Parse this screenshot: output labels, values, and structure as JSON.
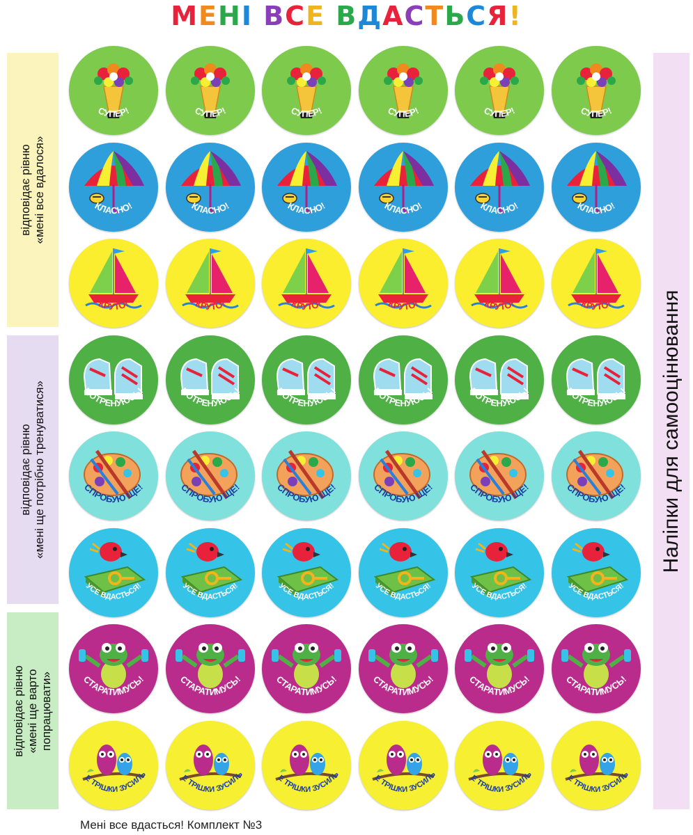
{
  "title": {
    "text": "МЕНІ ВСЕ ВДАСТЬСЯ!",
    "letter_colors": [
      "#e8223a",
      "#f08a1c",
      "#2aa84a",
      "#1e88d8",
      "#ffffff",
      "#8a3fb8",
      "#e8223a",
      "#f0b51c",
      "#ffffff",
      "#2aa84a",
      "#1e88d8",
      "#e8223a",
      "#8a3fb8",
      "#f08a1c",
      "#2aa84a",
      "#1e88d8",
      "#e8223a",
      "#f0b51c"
    ]
  },
  "side_labels": [
    {
      "line1": "відповідає рівню",
      "line2": "«мені все вдалося»",
      "line3": "",
      "color": "#fbf5bd"
    },
    {
      "line1": "відповідає рівню",
      "line2": "«мені ще потрібно тренуватися»",
      "line3": "",
      "color": "#e5dcf1"
    },
    {
      "line1": "відповідає рівню",
      "line2": "«мені ще варто",
      "line3": "попрацювати»",
      "color": "#c8ecc4"
    }
  ],
  "right_label": "Наліпки для самооцінювання",
  "sticker_rows": [
    {
      "label": "СУПЕР!",
      "icon": "bouquet-icon",
      "bg": "#7dca4c",
      "text_color": "#ffffff"
    },
    {
      "label": "КЛАСНО!",
      "icon": "umbrella-icon",
      "bg": "#2f9fdc",
      "text_color": "#ffffff"
    },
    {
      "label": "КРУТО!",
      "icon": "sailboat-icon",
      "bg": "#fbee2e",
      "text_color": "#e8223a"
    },
    {
      "label": "ПОТРЕНУЮСЬ!",
      "icon": "sneakers-icon",
      "bg": "#4fb046",
      "text_color": "#ffffff"
    },
    {
      "label": "СПРОБУЮ ЩЕ!",
      "icon": "palette-icon",
      "bg": "#7fe0dc",
      "text_color": "#1a3fa0"
    },
    {
      "label": "УСЕ ВДАСТЬСЯ!",
      "icon": "bird-book-icon",
      "bg": "#35c3e8",
      "text_color": "#ffffff"
    },
    {
      "label": "СТАРАТИМУСЬ!",
      "icon": "frog-icon",
      "bg": "#b92c8c",
      "text_color": "#ffffff"
    },
    {
      "label": "ЩЕ ТРІШКИ ЗУСИЛЬ!",
      "icon": "owls-icon",
      "bg": "#f7ef31",
      "text_color": "#1a3fa0"
    }
  ],
  "stickers_per_row": 6,
  "footer": "Мені все вдасться! Комплект №3"
}
